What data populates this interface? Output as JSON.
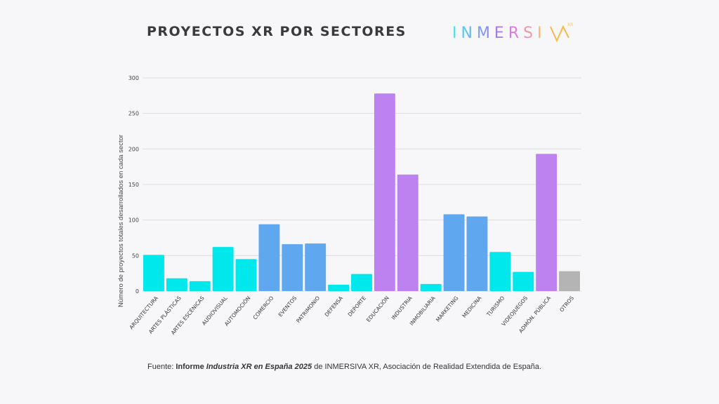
{
  "header": {
    "title": "PROYECTOS XR POR SECTORES",
    "logo_text": "INMERSIVA",
    "logo_badge": "XR"
  },
  "chart_data": {
    "type": "bar",
    "title": "PROYECTOS XR POR SECTORES",
    "xlabel": "",
    "ylabel": "Número de proyectos totales desarrollados en cada sector",
    "ylim": [
      0,
      300
    ],
    "yticks": [
      0,
      50,
      100,
      150,
      200,
      250,
      300
    ],
    "grid": true,
    "categories": [
      "ARQUITECTURA",
      "ARTES PLÁSTICAS",
      "ARTES ESCÉNICAS",
      "AUDIOVISUAL",
      "AUTOMOCIÓN",
      "COMERCIO",
      "EVENTOS",
      "PATRIMONIO",
      "DEFENSA",
      "DEPORTE",
      "EDUCACIÓN",
      "INDUSTRIA",
      "INMOBILIARIA",
      "MARKETING",
      "MEDICINA",
      "TURISMO",
      "VIDEOJUEGOS",
      "ADMÓN. PÚBLICA",
      "OTROS"
    ],
    "values": [
      51,
      18,
      14,
      62,
      45,
      94,
      66,
      67,
      9,
      24,
      278,
      164,
      10,
      108,
      105,
      55,
      27,
      193,
      28
    ],
    "colors": [
      "#00e8eb",
      "#00e8eb",
      "#00e8eb",
      "#00e8eb",
      "#00e8eb",
      "#5fa8ef",
      "#5fa8ef",
      "#5fa8ef",
      "#00e8eb",
      "#00e8eb",
      "#bd82ef",
      "#bd82ef",
      "#00e8eb",
      "#5fa8ef",
      "#5fa8ef",
      "#00e8eb",
      "#00e8eb",
      "#bd82ef",
      "#b4b4b4"
    ]
  },
  "footer": {
    "prefix": "Fuente: ",
    "bold1": "Informe ",
    "bolditalic": "Industria XR en España 2025",
    "rest": " de INMERSIVA XR, Asociación de Realidad Extendida de España."
  }
}
